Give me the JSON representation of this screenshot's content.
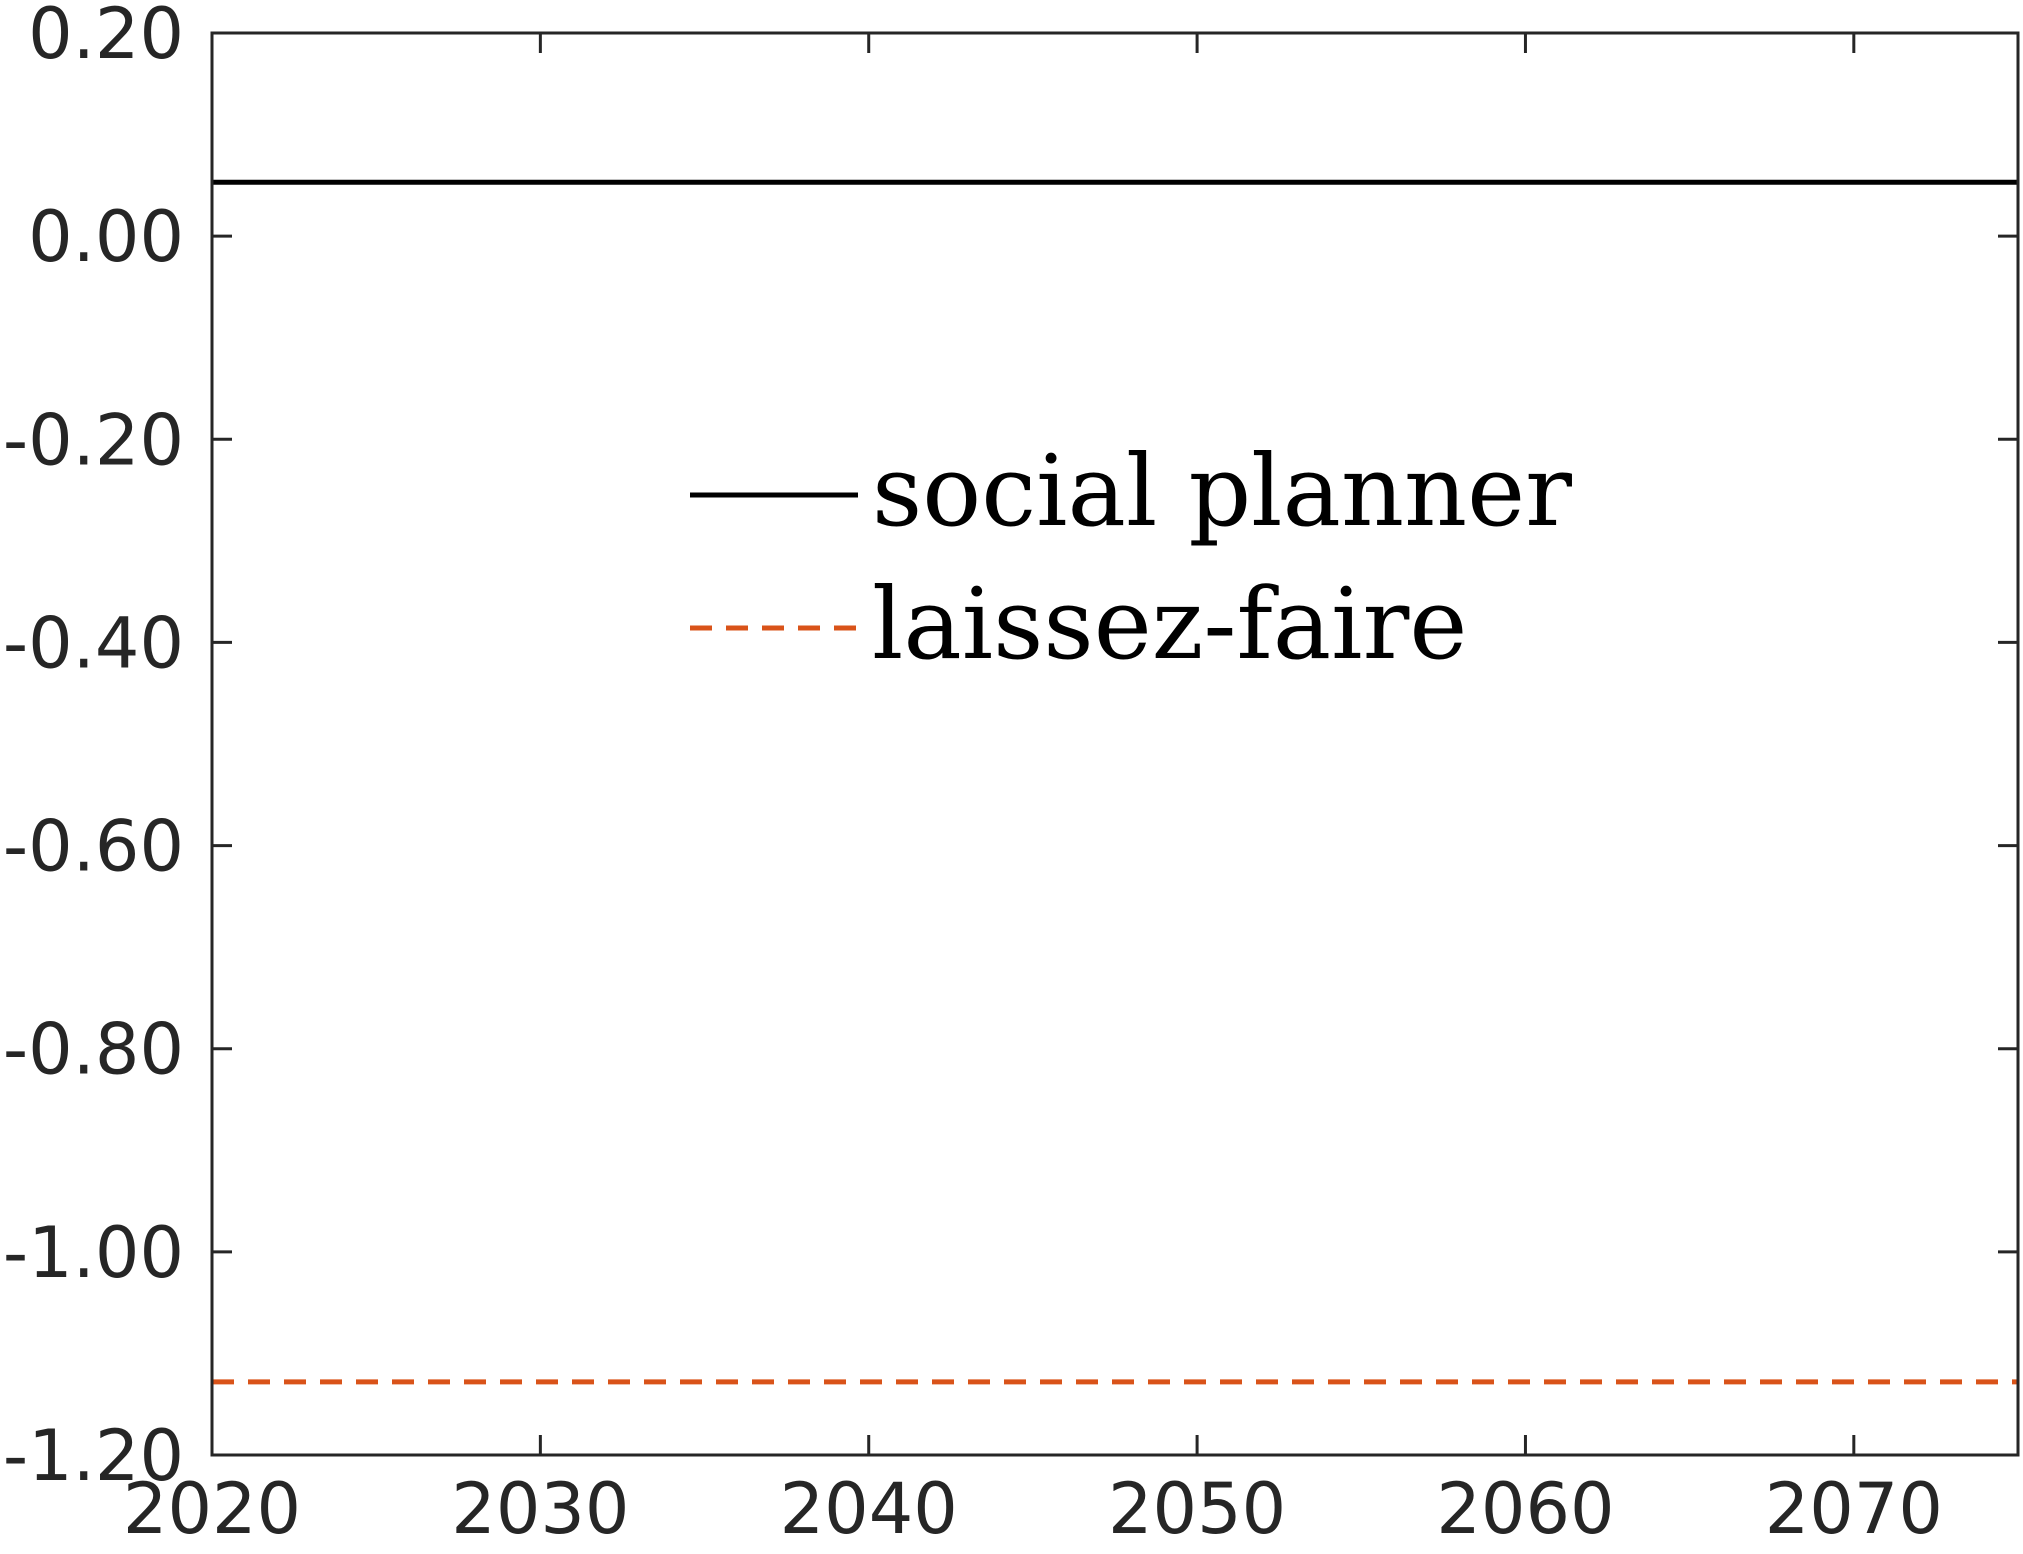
{
  "chart_data": {
    "type": "line",
    "title": "",
    "xlabel": "",
    "ylabel": "",
    "xlim": [
      2020,
      2075
    ],
    "ylim": [
      -1.2,
      0.2
    ],
    "x_ticks": [
      2020,
      2030,
      2040,
      2050,
      2060,
      2070
    ],
    "x_tick_labels": [
      "2020",
      "2030",
      "2040",
      "2050",
      "2060",
      "2070"
    ],
    "y_ticks": [
      0.2,
      0.0,
      -0.2,
      -0.4,
      -0.6,
      -0.8,
      -1.0,
      -1.2
    ],
    "y_tick_labels": [
      "0.20",
      "0.00",
      "-0.20",
      "-0.40",
      "-0.60",
      "-0.80",
      "-1.00",
      "-1.20"
    ],
    "grid": false,
    "legend": {
      "placement": "center",
      "entries": [
        "social planner",
        "laissez-faire"
      ]
    },
    "series": [
      {
        "name": "social planner",
        "color": "#000000",
        "style": "solid",
        "x": [
          2020,
          2075
        ],
        "y": [
          0.053,
          0.053
        ]
      },
      {
        "name": "laissez-faire",
        "color": "#D95319",
        "style": "dashed",
        "x": [
          2020,
          2075
        ],
        "y": [
          -1.128,
          -1.128
        ]
      }
    ]
  }
}
